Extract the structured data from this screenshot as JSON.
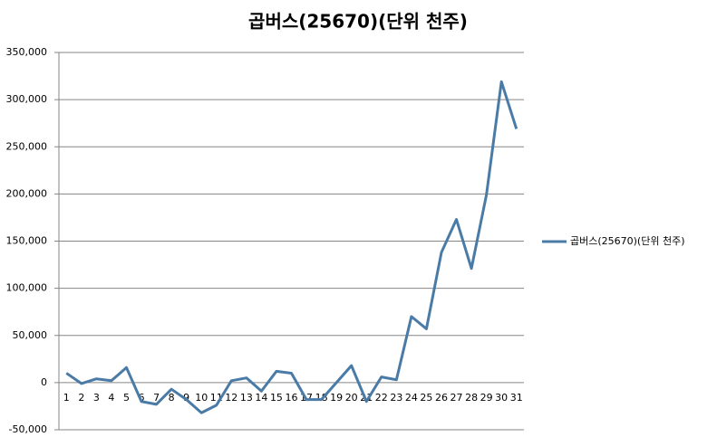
{
  "chart_data": {
    "type": "line",
    "title": "곱버스(25670)(단위 천주)",
    "categories": [
      "1",
      "2",
      "3",
      "4",
      "5",
      "6",
      "7",
      "8",
      "9",
      "10",
      "11",
      "12",
      "13",
      "14",
      "15",
      "16",
      "17",
      "18",
      "19",
      "20",
      "21",
      "22",
      "23",
      "24",
      "25",
      "26",
      "27",
      "28",
      "29",
      "30",
      "31"
    ],
    "series": [
      {
        "name": "곱버스(25670)(단위 천주)",
        "color": "#4a7ba7",
        "values": [
          10000,
          -1000,
          4000,
          2000,
          16000,
          -20000,
          -23000,
          -7000,
          -18000,
          -32000,
          -24000,
          2000,
          5000,
          -9000,
          12000,
          10000,
          -18000,
          -18000,
          0,
          18000,
          -20000,
          6000,
          3000,
          70000,
          57000,
          138000,
          173000,
          121000,
          199000,
          319000,
          269000
        ]
      }
    ],
    "ylim": [
      -50000,
      350000
    ],
    "yticks": [
      {
        "value": -50000,
        "label": "-50,000"
      },
      0,
      {
        "value": 50000,
        "label": "50,000"
      },
      {
        "value": 100000,
        "label": "100,000"
      },
      {
        "value": 150000,
        "label": "150,000"
      },
      {
        "value": 200000,
        "label": "200,000"
      },
      {
        "value": 250000,
        "label": "250,000"
      },
      {
        "value": 300000,
        "label": "300,000"
      },
      {
        "value": 350000,
        "label": "350,000"
      }
    ],
    "grid": true,
    "legend": "right"
  }
}
